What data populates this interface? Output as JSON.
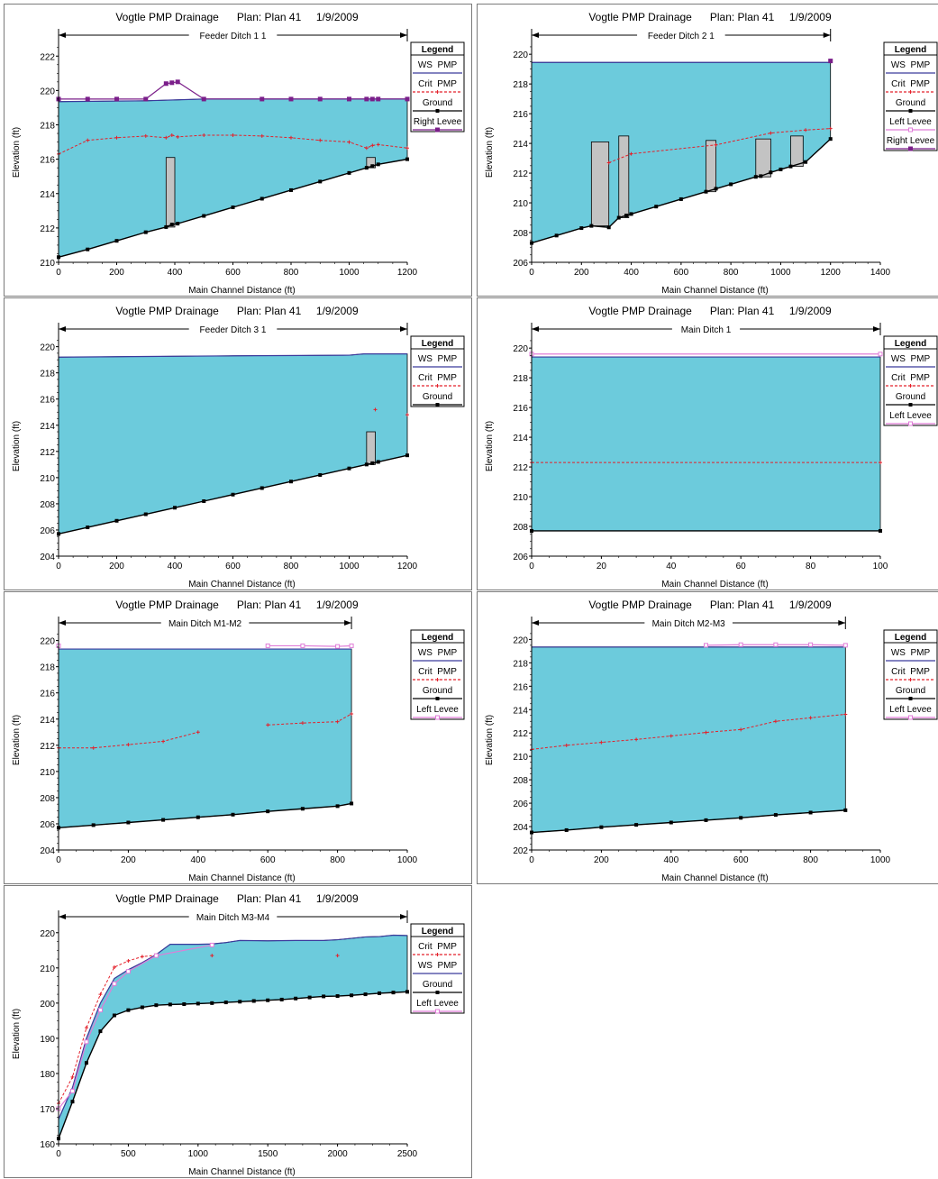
{
  "colors": {
    "water": "#6ccbdc",
    "ws_line": "#3a3a9c",
    "crit": "#e4202a",
    "ground": "#000000",
    "right_levee": "#7b1f8a",
    "left_levee": "#e07cd8",
    "structure": "#c3c3c3"
  },
  "chart_data": [
    {
      "type": "line",
      "title": "Vogtle PMP Drainage      Plan: Plan 41     1/9/2009",
      "reach": "Feeder Ditch 1 1",
      "xlabel": "Main Channel Distance (ft)",
      "ylabel": "Elevation (ft)",
      "xlim": [
        0,
        1200
      ],
      "ylim": [
        210,
        222.8
      ],
      "xticks": [
        "0",
        "200",
        "400",
        "600",
        "800",
        "1000",
        "1200"
      ],
      "yticks": [
        "210",
        "212",
        "214",
        "216",
        "218",
        "220",
        "222"
      ],
      "reach_arrow": [
        0,
        1200
      ],
      "legend": [
        "WS  PMP",
        "Crit  PMP",
        "Ground",
        "Right Levee"
      ],
      "ground": [
        [
          0,
          210.3
        ],
        [
          100,
          210.75
        ],
        [
          200,
          211.25
        ],
        [
          300,
          211.75
        ],
        [
          370,
          212.05
        ],
        [
          390,
          212.2
        ],
        [
          410,
          212.25
        ],
        [
          500,
          212.7
        ],
        [
          600,
          213.2
        ],
        [
          700,
          213.7
        ],
        [
          800,
          214.2
        ],
        [
          900,
          214.7
        ],
        [
          1000,
          215.2
        ],
        [
          1060,
          215.5
        ],
        [
          1080,
          215.6
        ],
        [
          1100,
          215.7
        ],
        [
          1200,
          216.0
        ]
      ],
      "ws": [
        [
          0,
          219.35
        ],
        [
          300,
          219.4
        ],
        [
          500,
          219.5
        ],
        [
          1200,
          219.5
        ]
      ],
      "crit": [
        [
          0,
          216.3
        ],
        [
          100,
          217.1
        ],
        [
          200,
          217.25
        ],
        [
          300,
          217.35
        ],
        [
          370,
          217.25
        ],
        [
          390,
          217.4
        ],
        [
          410,
          217.3
        ],
        [
          500,
          217.4
        ],
        [
          600,
          217.4
        ],
        [
          700,
          217.35
        ],
        [
          800,
          217.25
        ],
        [
          900,
          217.1
        ],
        [
          1000,
          217.0
        ],
        [
          1060,
          216.65
        ],
        [
          1080,
          216.8
        ],
        [
          1100,
          216.85
        ],
        [
          1200,
          216.65
        ]
      ],
      "levee": {
        "series": "Right Levee",
        "points": [
          [
            0,
            219.5
          ],
          [
            100,
            219.5
          ],
          [
            200,
            219.5
          ],
          [
            300,
            219.5
          ],
          [
            370,
            220.4
          ],
          [
            390,
            220.45
          ],
          [
            410,
            220.5
          ],
          [
            500,
            219.5
          ],
          [
            700,
            219.5
          ],
          [
            800,
            219.5
          ],
          [
            900,
            219.5
          ],
          [
            1000,
            219.5
          ],
          [
            1060,
            219.5
          ],
          [
            1080,
            219.5
          ],
          [
            1100,
            219.5
          ],
          [
            1200,
            219.5
          ]
        ]
      },
      "structures": [
        [
          370,
          400,
          216.1
        ],
        [
          1060,
          1090,
          216.1
        ]
      ]
    },
    {
      "type": "line",
      "title": "Vogtle PMP Drainage      Plan: Plan 41     1/9/2009",
      "reach": "Feeder Ditch 2 1",
      "xlabel": "Main Channel Distance (ft)",
      "ylabel": "Elevation (ft)",
      "xlim": [
        0,
        1400
      ],
      "ylim": [
        206,
        220.8
      ],
      "xticks": [
        "0",
        "200",
        "400",
        "600",
        "800",
        "1000",
        "1200",
        "1400"
      ],
      "yticks": [
        "206",
        "208",
        "210",
        "212",
        "214",
        "216",
        "218",
        "220"
      ],
      "reach_arrow": [
        0,
        1200
      ],
      "legend": [
        "WS  PMP",
        "Crit  PMP",
        "Ground",
        "Left Levee",
        "Right Levee"
      ],
      "ground": [
        [
          0,
          207.3
        ],
        [
          100,
          207.8
        ],
        [
          200,
          208.3
        ],
        [
          240,
          208.45
        ],
        [
          310,
          208.35
        ],
        [
          350,
          209.0
        ],
        [
          380,
          209.15
        ],
        [
          400,
          209.25
        ],
        [
          500,
          209.75
        ],
        [
          600,
          210.25
        ],
        [
          700,
          210.75
        ],
        [
          740,
          210.95
        ],
        [
          800,
          211.25
        ],
        [
          900,
          211.75
        ],
        [
          920,
          211.8
        ],
        [
          960,
          212.05
        ],
        [
          1000,
          212.25
        ],
        [
          1040,
          212.45
        ],
        [
          1100,
          212.75
        ],
        [
          1200,
          214.3
        ]
      ],
      "ws": [
        [
          0,
          219.45
        ],
        [
          1200,
          219.45
        ]
      ],
      "crit": [
        [
          310,
          212.7
        ],
        [
          400,
          213.3
        ],
        [
          740,
          213.9
        ],
        [
          960,
          214.7
        ],
        [
          1100,
          214.9
        ],
        [
          1200,
          215.0
        ]
      ],
      "levee": {
        "series": "Right Levee",
        "points": [
          [
            1200,
            219.55
          ]
        ]
      },
      "structures": [
        [
          240,
          310,
          214.1
        ],
        [
          350,
          390,
          214.5
        ],
        [
          700,
          740,
          214.2
        ],
        [
          900,
          960,
          214.3
        ],
        [
          1040,
          1090,
          214.5
        ]
      ]
    },
    {
      "type": "line",
      "title": "Vogtle PMP Drainage      Plan: Plan 41     1/9/2009",
      "reach": "Feeder Ditch 3 1",
      "xlabel": "Main Channel Distance (ft)",
      "ylabel": "Elevation (ft)",
      "xlim": [
        0,
        1200
      ],
      "ylim": [
        204,
        220.8
      ],
      "xticks": [
        "0",
        "200",
        "400",
        "600",
        "800",
        "1000",
        "1200"
      ],
      "yticks": [
        "204",
        "206",
        "208",
        "210",
        "212",
        "214",
        "216",
        "218",
        "220"
      ],
      "reach_arrow": [
        0,
        1200
      ],
      "legend": [
        "WS  PMP",
        "Crit  PMP",
        "Ground"
      ],
      "ground": [
        [
          0,
          205.7
        ],
        [
          100,
          206.2
        ],
        [
          200,
          206.7
        ],
        [
          300,
          207.2
        ],
        [
          400,
          207.7
        ],
        [
          500,
          208.2
        ],
        [
          600,
          208.7
        ],
        [
          700,
          209.2
        ],
        [
          800,
          209.7
        ],
        [
          900,
          210.2
        ],
        [
          1000,
          210.7
        ],
        [
          1060,
          211.0
        ],
        [
          1080,
          211.1
        ],
        [
          1100,
          211.2
        ],
        [
          1200,
          211.7
        ]
      ],
      "ws": [
        [
          0,
          219.2
        ],
        [
          300,
          219.25
        ],
        [
          600,
          219.3
        ],
        [
          1000,
          219.35
        ],
        [
          1050,
          219.45
        ],
        [
          1200,
          219.45
        ]
      ],
      "crit": [
        [
          1090,
          215.2
        ],
        [
          1200,
          214.8
        ]
      ],
      "structures": [
        [
          1060,
          1090,
          213.5
        ]
      ]
    },
    {
      "type": "line",
      "title": "Vogtle PMP Drainage      Plan: Plan 41     1/9/2009",
      "reach": "Main Ditch 1",
      "xlabel": "Main Channel Distance (ft)",
      "ylabel": "Elevation (ft)",
      "xlim": [
        0,
        100
      ],
      "ylim": [
        206,
        220.8
      ],
      "xticks": [
        "0",
        "20",
        "40",
        "60",
        "80",
        "100"
      ],
      "yticks": [
        "206",
        "208",
        "210",
        "212",
        "214",
        "216",
        "218",
        "220"
      ],
      "reach_arrow": [
        0,
        100
      ],
      "legend": [
        "WS  PMP",
        "Crit  PMP",
        "Ground",
        "Left Levee"
      ],
      "ground": [
        [
          0,
          207.7
        ],
        [
          100,
          207.7
        ]
      ],
      "ws": [
        [
          0,
          219.4
        ],
        [
          100,
          219.4
        ]
      ],
      "crit": [
        [
          0,
          212.3
        ],
        [
          100,
          212.3
        ]
      ],
      "crit_dashed": true,
      "levee": {
        "series": "Left Levee",
        "points": [
          [
            0,
            219.6
          ],
          [
            100,
            219.6
          ]
        ]
      }
    },
    {
      "type": "line",
      "title": "Vogtle PMP Drainage      Plan: Plan 41     1/9/2009",
      "reach": "Main Ditch M1-M2",
      "xlabel": "Main Channel Distance (ft)",
      "ylabel": "Elevation (ft)",
      "xlim": [
        0,
        1000
      ],
      "ylim": [
        204,
        220.8
      ],
      "xticks": [
        "0",
        "200",
        "400",
        "600",
        "800",
        "1000"
      ],
      "yticks": [
        "204",
        "206",
        "208",
        "210",
        "212",
        "214",
        "216",
        "218",
        "220"
      ],
      "reach_arrow": [
        0,
        840
      ],
      "legend": [
        "WS  PMP",
        "Crit  PMP",
        "Ground",
        "Left Levee"
      ],
      "ground": [
        [
          0,
          205.7
        ],
        [
          100,
          205.9
        ],
        [
          200,
          206.1
        ],
        [
          300,
          206.3
        ],
        [
          400,
          206.5
        ],
        [
          500,
          206.7
        ],
        [
          600,
          206.95
        ],
        [
          700,
          207.15
        ],
        [
          800,
          207.35
        ],
        [
          840,
          207.55
        ]
      ],
      "ws": [
        [
          0,
          219.35
        ],
        [
          840,
          219.35
        ]
      ],
      "crit": [
        [
          0,
          211.8
        ],
        [
          100,
          211.8
        ],
        [
          200,
          212.05
        ],
        [
          300,
          212.3
        ],
        [
          400,
          213.0
        ]
      ],
      "crit2": [
        [
          600,
          213.55
        ],
        [
          700,
          213.7
        ],
        [
          800,
          213.8
        ],
        [
          840,
          214.4
        ]
      ],
      "levee": {
        "series": "Left Levee",
        "points": [
          [
            600,
            219.6
          ],
          [
            700,
            219.6
          ],
          [
            800,
            219.55
          ],
          [
            840,
            219.6
          ]
        ]
      },
      "levee_start": [
        0,
        219.6
      ]
    },
    {
      "type": "line",
      "title": "Vogtle PMP Drainage      Plan: Plan 41     1/9/2009",
      "reach": "Main Ditch M2-M3",
      "xlabel": "Main Channel Distance (ft)",
      "ylabel": "Elevation (ft)",
      "xlim": [
        0,
        1000
      ],
      "ylim": [
        202,
        220.8
      ],
      "xticks": [
        "0",
        "200",
        "400",
        "600",
        "800",
        "1000"
      ],
      "yticks": [
        "202",
        "204",
        "206",
        "208",
        "210",
        "212",
        "214",
        "216",
        "218",
        "220"
      ],
      "reach_arrow": [
        0,
        900
      ],
      "legend": [
        "WS  PMP",
        "Crit  PMP",
        "Ground",
        "Left Levee"
      ],
      "ground": [
        [
          0,
          203.5
        ],
        [
          100,
          203.7
        ],
        [
          200,
          203.95
        ],
        [
          300,
          204.15
        ],
        [
          400,
          204.35
        ],
        [
          500,
          204.55
        ],
        [
          600,
          204.75
        ],
        [
          700,
          205.0
        ],
        [
          800,
          205.2
        ],
        [
          900,
          205.4
        ]
      ],
      "ws": [
        [
          0,
          219.35
        ],
        [
          900,
          219.35
        ]
      ],
      "crit": [
        [
          0,
          210.6
        ],
        [
          100,
          210.95
        ],
        [
          200,
          211.2
        ],
        [
          300,
          211.45
        ],
        [
          400,
          211.75
        ],
        [
          500,
          212.05
        ],
        [
          600,
          212.3
        ],
        [
          700,
          213.0
        ],
        [
          800,
          213.3
        ],
        [
          900,
          213.6
        ]
      ],
      "levee": {
        "series": "Left Levee",
        "points": [
          [
            500,
            219.5
          ],
          [
            600,
            219.55
          ],
          [
            700,
            219.55
          ],
          [
            800,
            219.55
          ],
          [
            900,
            219.5
          ]
        ]
      }
    },
    {
      "type": "line",
      "title": "Vogtle PMP Drainage      Plan: Plan 41     1/9/2009",
      "reach": "Main Ditch M3-M4",
      "xlabel": "Main Channel Distance (ft)",
      "ylabel": "Elevation (ft)",
      "xlim": [
        0,
        2500
      ],
      "ylim": [
        160,
        222.5
      ],
      "xticks": [
        "0",
        "500",
        "1000",
        "1500",
        "2000",
        "2500"
      ],
      "yticks": [
        "160",
        "170",
        "180",
        "190",
        "200",
        "210",
        "220"
      ],
      "reach_arrow": [
        0,
        2500
      ],
      "legend": [
        "Crit  PMP",
        "WS  PMP",
        "Ground",
        "Left Levee"
      ],
      "ground": [
        [
          0,
          161.5
        ],
        [
          100,
          172
        ],
        [
          200,
          183
        ],
        [
          300,
          192
        ],
        [
          400,
          196.5
        ],
        [
          500,
          198
        ],
        [
          600,
          198.8
        ],
        [
          700,
          199.4
        ],
        [
          800,
          199.6
        ],
        [
          900,
          199.7
        ],
        [
          1000,
          199.85
        ],
        [
          1100,
          200.0
        ],
        [
          1200,
          200.2
        ],
        [
          1300,
          200.4
        ],
        [
          1400,
          200.6
        ],
        [
          1500,
          200.8
        ],
        [
          1600,
          201.0
        ],
        [
          1700,
          201.3
        ],
        [
          1800,
          201.6
        ],
        [
          1900,
          201.9
        ],
        [
          2000,
          202.0
        ],
        [
          2100,
          202.2
        ],
        [
          2200,
          202.5
        ],
        [
          2300,
          202.8
        ],
        [
          2400,
          203.0
        ],
        [
          2500,
          203.2
        ]
      ],
      "ws": [
        [
          0,
          167
        ],
        [
          100,
          176
        ],
        [
          200,
          190
        ],
        [
          300,
          200
        ],
        [
          400,
          207
        ],
        [
          500,
          209.5
        ],
        [
          600,
          211.5
        ],
        [
          700,
          213.8
        ],
        [
          800,
          216.7
        ],
        [
          1000,
          216.7
        ],
        [
          1100,
          216.8
        ],
        [
          1200,
          217.2
        ],
        [
          1300,
          217.8
        ],
        [
          1500,
          217.7
        ],
        [
          1700,
          217.8
        ],
        [
          1900,
          217.8
        ],
        [
          2000,
          218.0
        ],
        [
          2200,
          218.8
        ],
        [
          2300,
          218.9
        ],
        [
          2400,
          219.3
        ],
        [
          2500,
          219.2
        ]
      ],
      "crit": [
        [
          0,
          171.5
        ],
        [
          100,
          179
        ],
        [
          200,
          193
        ],
        [
          300,
          202.5
        ],
        [
          400,
          210.2
        ],
        [
          500,
          212
        ],
        [
          600,
          213.2
        ],
        [
          700,
          213.6
        ]
      ],
      "crit_extra": [
        [
          1100,
          213.5
        ],
        [
          2000,
          213.5
        ]
      ],
      "levee": {
        "series": "Left Levee",
        "points": [
          [
            0,
            170
          ],
          [
            100,
            175
          ],
          [
            200,
            189
          ],
          [
            300,
            198
          ],
          [
            400,
            205.5
          ],
          [
            500,
            209
          ],
          [
            700,
            213.5
          ],
          [
            1100,
            216.5
          ]
        ]
      }
    }
  ]
}
